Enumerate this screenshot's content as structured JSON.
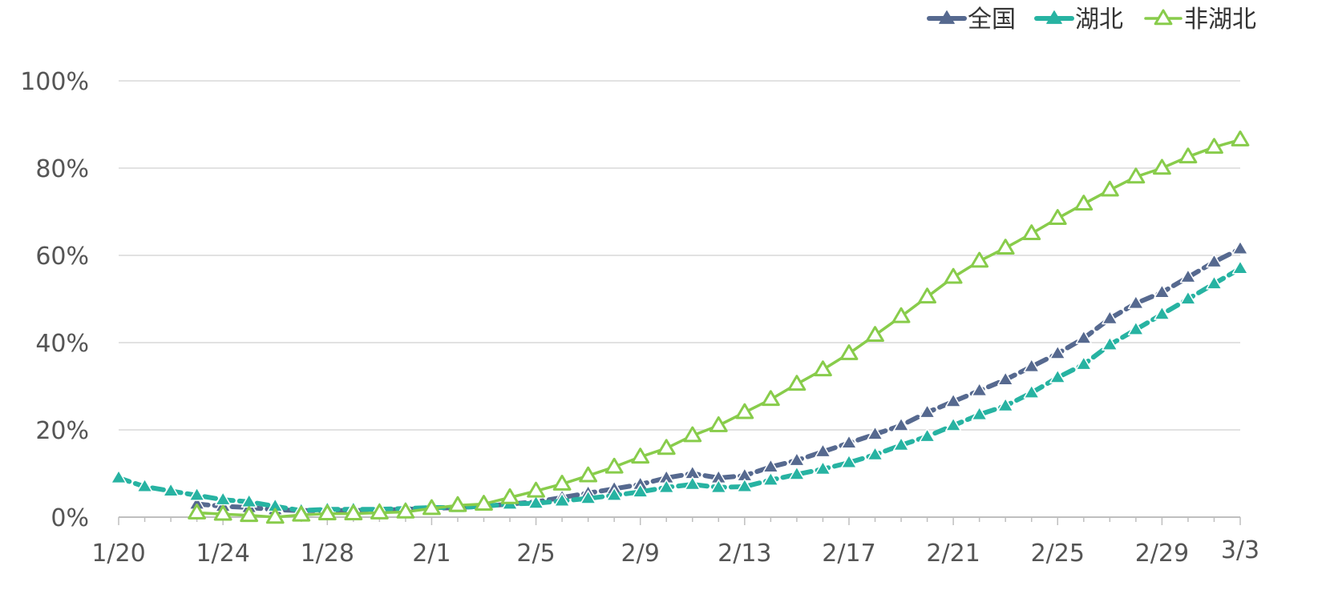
{
  "chart_data": {
    "type": "line",
    "x": [
      "1/20",
      "1/21",
      "1/22",
      "1/23",
      "1/24",
      "1/25",
      "1/26",
      "1/27",
      "1/28",
      "1/29",
      "1/30",
      "1/31",
      "2/1",
      "2/2",
      "2/3",
      "2/4",
      "2/5",
      "2/6",
      "2/7",
      "2/8",
      "2/9",
      "2/10",
      "2/11",
      "2/12",
      "2/13",
      "2/14",
      "2/15",
      "2/16",
      "2/17",
      "2/18",
      "2/19",
      "2/20",
      "2/21",
      "2/22",
      "2/23",
      "2/24",
      "2/25",
      "2/26",
      "2/27",
      "2/28",
      "2/29",
      "3/1",
      "3/2",
      "3/3"
    ],
    "x_tick_labels": [
      "1/20",
      "1/24",
      "1/28",
      "2/1",
      "2/5",
      "2/9",
      "2/13",
      "2/17",
      "2/21",
      "2/25",
      "2/29",
      "3/3"
    ],
    "y_tick_labels": [
      "0%",
      "20%",
      "40%",
      "60%",
      "80%",
      "100%"
    ],
    "ylim": [
      0,
      100
    ],
    "grid": true,
    "legend": {
      "position": "top-right",
      "items": [
        "全国",
        "湖北",
        "非湖北"
      ]
    },
    "colors": {
      "national": "#56698f",
      "hubei": "#27b3a2",
      "non_hubei": "#88cc4b",
      "grid": "#d9d9d9",
      "axis": "#bfbfbf",
      "text": "#555555"
    },
    "series": [
      {
        "name": "全国",
        "values": [
          null,
          null,
          null,
          3,
          2.5,
          2.2,
          1.7,
          1.5,
          1.5,
          1.5,
          1.6,
          1.8,
          2,
          2.2,
          2.5,
          3,
          3.5,
          4.5,
          5.5,
          6.5,
          7.5,
          9,
          10,
          9,
          9.5,
          11.5,
          13,
          15,
          17,
          19,
          21,
          24,
          26.5,
          29,
          31.5,
          34.5,
          37.5,
          41,
          45.5,
          49,
          51.5,
          55,
          58.5,
          61.5
        ]
      },
      {
        "name": "湖北",
        "values": [
          9,
          7,
          6,
          5,
          4,
          3.5,
          2.5,
          1.5,
          1.8,
          1.8,
          1.8,
          2,
          2.2,
          2.2,
          2.5,
          3,
          3.2,
          3.7,
          4.3,
          5,
          5.8,
          6.8,
          7.5,
          6.8,
          7,
          8.5,
          9.8,
          11,
          12.5,
          14.3,
          16.5,
          18.5,
          21,
          23.5,
          25.5,
          28.5,
          32,
          35,
          39.5,
          43,
          46.5,
          50,
          53.5,
          57
        ]
      },
      {
        "name": "非湖北",
        "values": [
          null,
          null,
          null,
          1,
          0.7,
          0.4,
          0,
          0.5,
          0.8,
          0.8,
          1,
          1.2,
          2,
          2.7,
          3,
          4.5,
          6,
          7.6,
          9.5,
          11.5,
          13.8,
          15.8,
          18.7,
          21,
          24,
          27,
          30.5,
          33.8,
          37.5,
          41.7,
          46,
          50.5,
          55,
          58.7,
          61.7,
          65,
          68.5,
          71.8,
          75,
          78,
          80,
          82.6,
          84.8,
          86.5
        ]
      }
    ]
  }
}
